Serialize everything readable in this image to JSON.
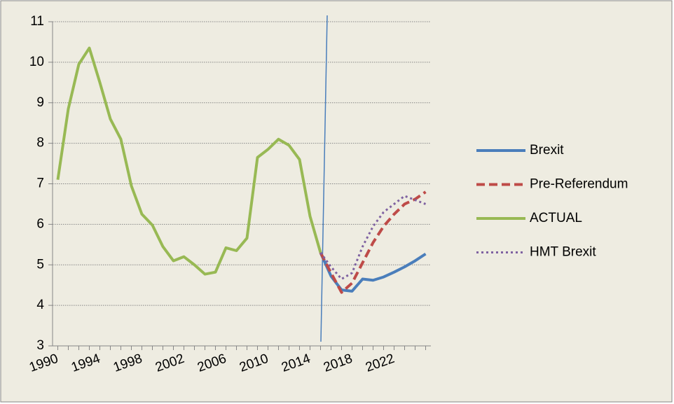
{
  "chart_data": {
    "type": "line",
    "x": [
      1990,
      1991,
      1992,
      1993,
      1994,
      1995,
      1996,
      1997,
      1998,
      1999,
      2000,
      2001,
      2002,
      2003,
      2004,
      2005,
      2006,
      2007,
      2008,
      2009,
      2010,
      2011,
      2012,
      2013,
      2014,
      2015,
      2016,
      2017,
      2018,
      2019,
      2020,
      2021,
      2022,
      2023,
      2024,
      2025
    ],
    "xlim": [
      1989.5,
      2025.5
    ],
    "xticks": [
      1990,
      1994,
      1998,
      2002,
      2006,
      2010,
      2014,
      2018,
      2022
    ],
    "ylim": [
      3,
      11
    ],
    "yticks": [
      3,
      4,
      5,
      6,
      7,
      8,
      9,
      10,
      11
    ],
    "grid": true,
    "legend": "right",
    "series": [
      {
        "name": "Brexit",
        "color": "#4a7ebb",
        "style": "solid",
        "values": [
          null,
          null,
          null,
          null,
          null,
          null,
          null,
          null,
          null,
          null,
          null,
          null,
          null,
          null,
          null,
          null,
          null,
          null,
          null,
          null,
          null,
          null,
          null,
          null,
          null,
          5.3,
          4.72,
          4.38,
          4.35,
          4.65,
          4.62,
          4.7,
          4.82,
          4.95,
          5.1,
          5.27
        ]
      },
      {
        "name": "Pre-Referendum",
        "color": "#be4b48",
        "style": "dashed",
        "values": [
          null,
          null,
          null,
          null,
          null,
          null,
          null,
          null,
          null,
          null,
          null,
          null,
          null,
          null,
          null,
          null,
          null,
          null,
          null,
          null,
          null,
          null,
          null,
          null,
          null,
          5.3,
          4.8,
          4.32,
          4.55,
          5.05,
          5.55,
          5.95,
          6.25,
          6.5,
          6.62,
          6.8
        ]
      },
      {
        "name": "ACTUAL",
        "color": "#98b954",
        "style": "solid",
        "values": [
          7.1,
          8.85,
          9.95,
          10.35,
          9.5,
          8.6,
          8.1,
          6.95,
          6.25,
          5.98,
          5.45,
          5.1,
          5.2,
          5.0,
          4.77,
          4.82,
          5.42,
          5.35,
          5.66,
          7.65,
          7.85,
          8.1,
          7.95,
          7.6,
          6.2,
          5.3,
          null,
          null,
          null,
          null,
          null,
          null,
          null,
          null,
          null,
          null
        ]
      },
      {
        "name": "HMT Brexit",
        "color": "#7f62a1",
        "style": "dotted",
        "values": [
          null,
          null,
          null,
          null,
          null,
          null,
          null,
          null,
          null,
          null,
          null,
          null,
          null,
          null,
          null,
          null,
          null,
          null,
          null,
          null,
          null,
          null,
          null,
          null,
          null,
          5.3,
          4.95,
          4.65,
          4.8,
          5.45,
          5.95,
          6.3,
          6.5,
          6.7,
          6.6,
          6.5
        ]
      }
    ]
  }
}
